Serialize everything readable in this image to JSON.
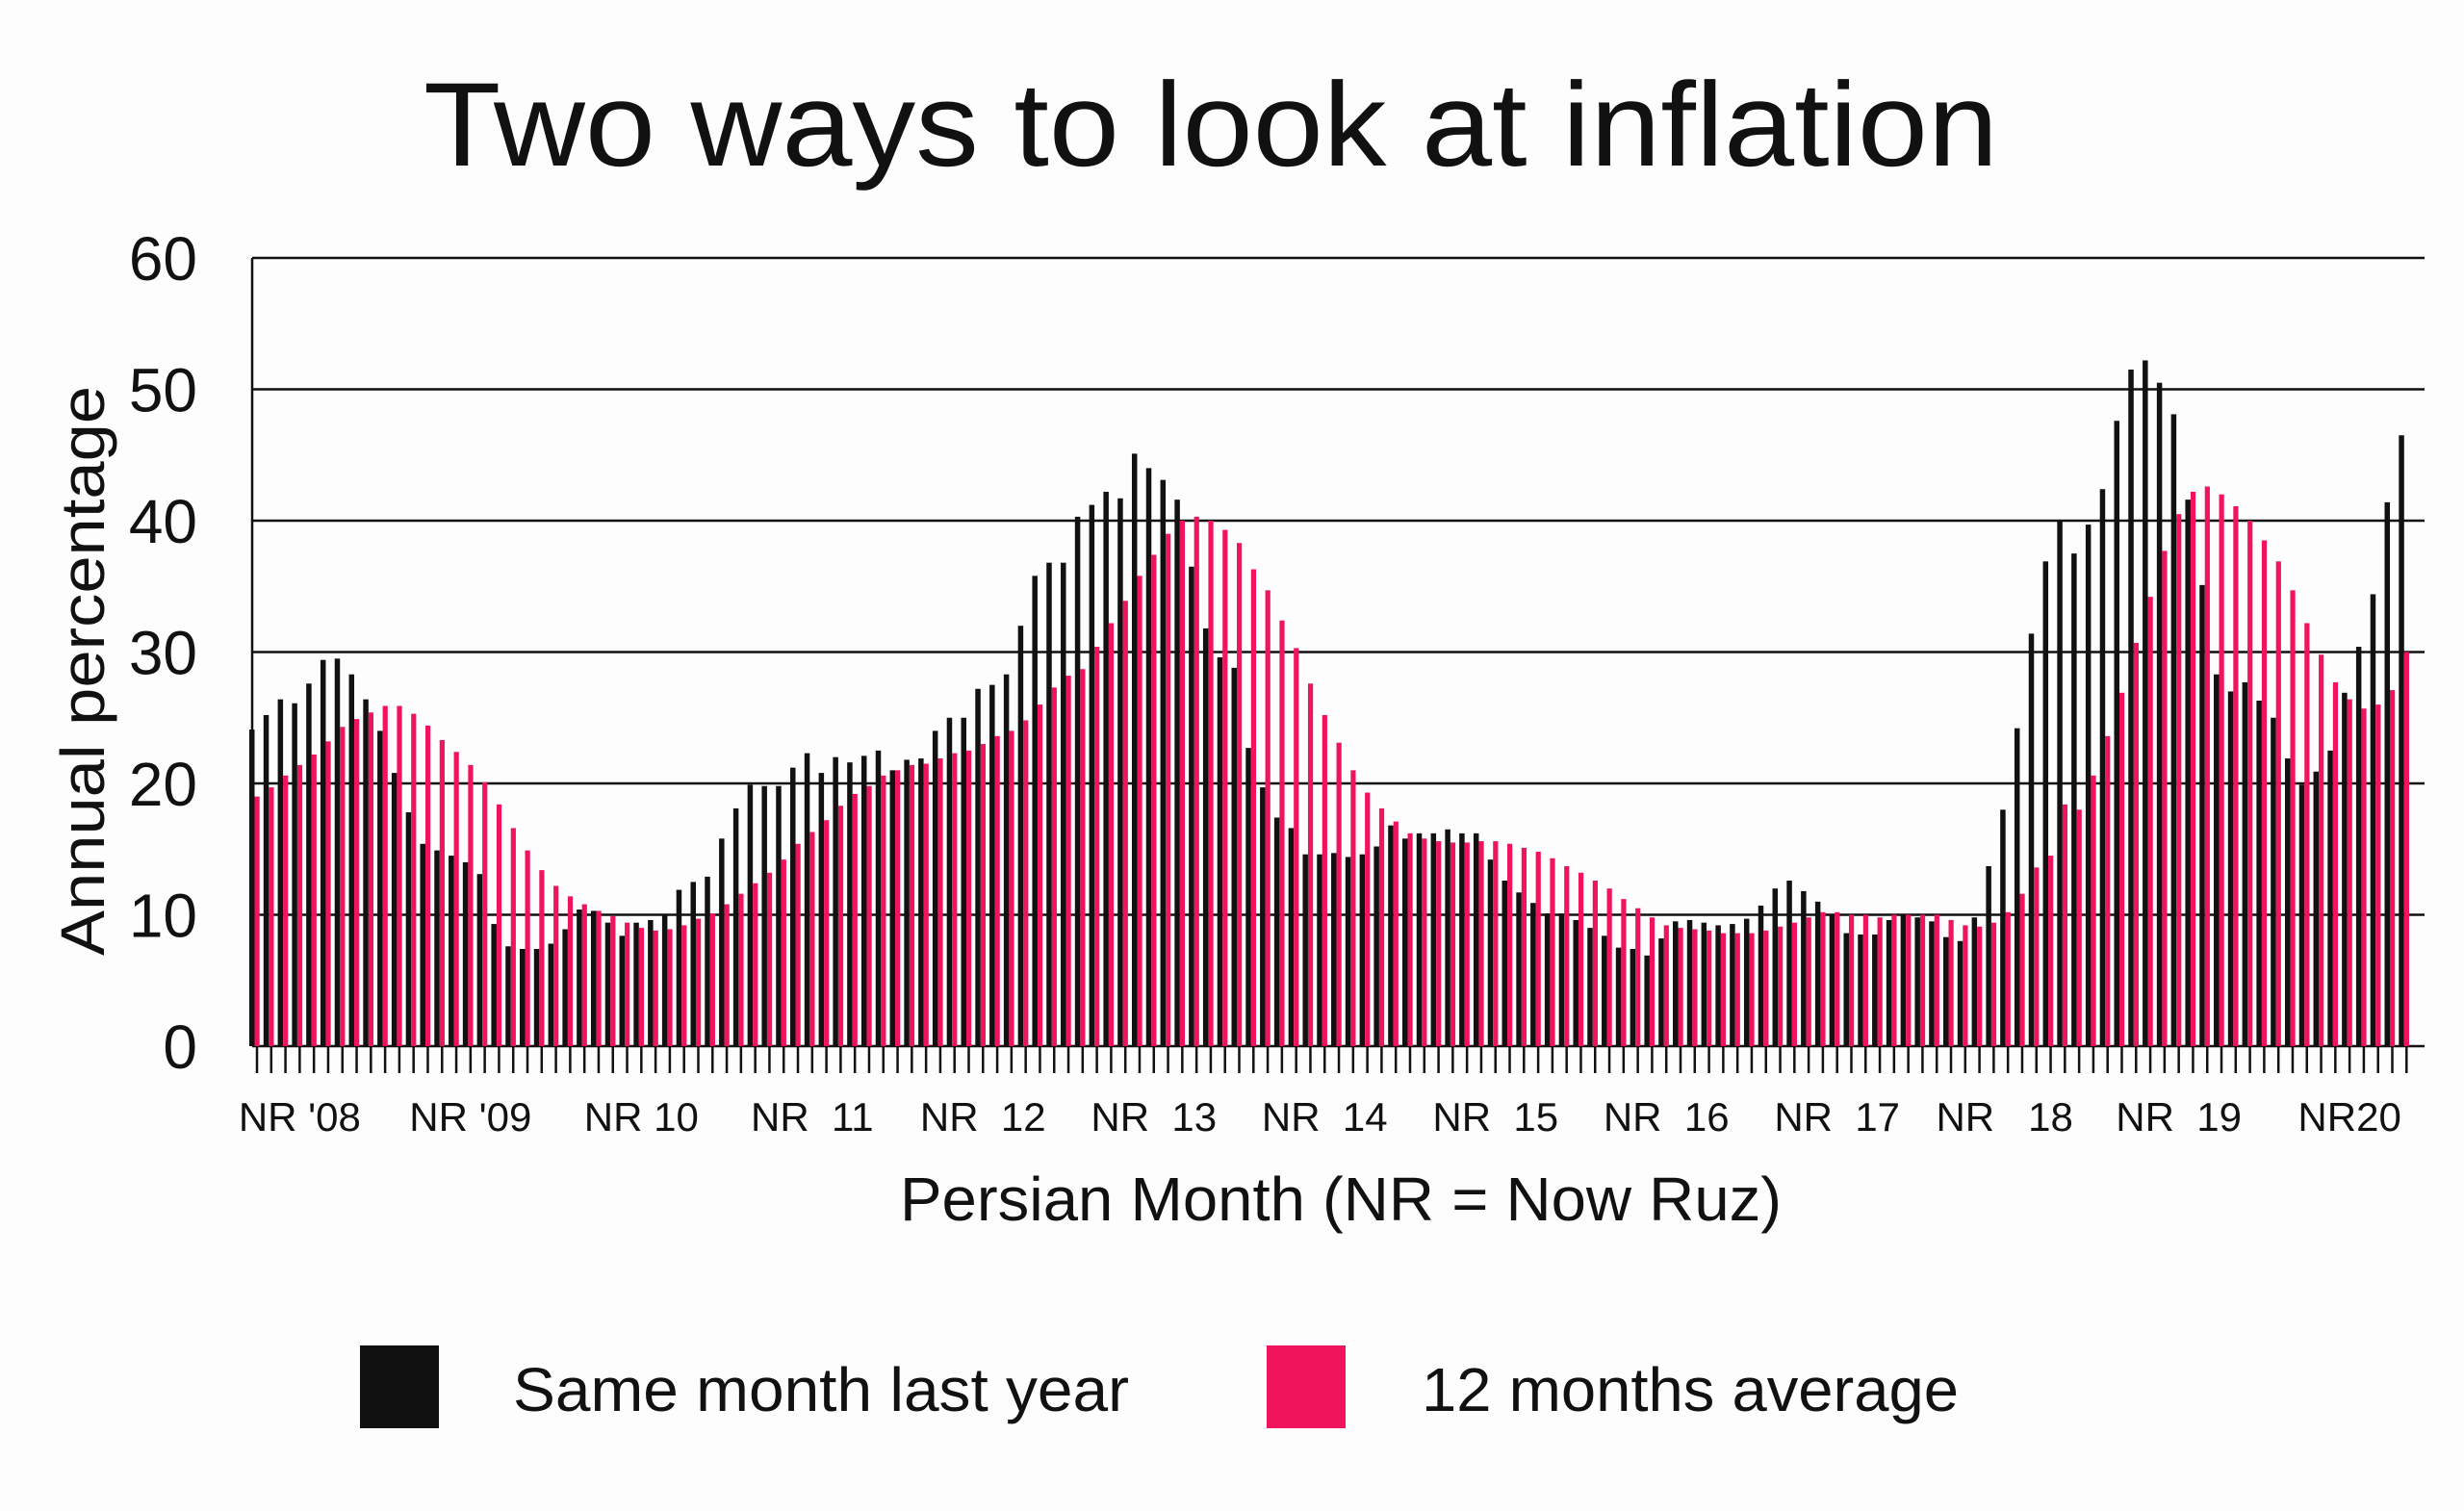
{
  "chart_data": {
    "type": "bar",
    "title": "Two ways to look at inflation",
    "xlabel": "Persian Month (NR = Now Ruz)",
    "ylabel": "Annual percentage",
    "ylim": [
      0,
      60
    ],
    "yticks": [
      0,
      10,
      20,
      30,
      40,
      50,
      60
    ],
    "grid": true,
    "legend_position": "bottom",
    "month_count": 152,
    "x_tick_labels": [
      {
        "month": 4,
        "label": "NR '08"
      },
      {
        "month": 16,
        "label": "NR '09"
      },
      {
        "month": 28,
        "label": "NR 10"
      },
      {
        "month": 40,
        "label": "NR  11"
      },
      {
        "month": 52,
        "label": "NR  12"
      },
      {
        "month": 64,
        "label": "NR  13"
      },
      {
        "month": 76,
        "label": "NR  14"
      },
      {
        "month": 88,
        "label": "NR  15"
      },
      {
        "month": 100,
        "label": "NR  16"
      },
      {
        "month": 112,
        "label": "NR  17"
      },
      {
        "month": 121,
        "label": "NR"
      },
      {
        "month": 127,
        "label": "18"
      },
      {
        "month": 136,
        "label": "NR  19"
      },
      {
        "month": 148,
        "label": "NR20"
      }
    ],
    "series": [
      {
        "name": "Same month last year",
        "color": "#111111",
        "values": [
          24.1,
          25.2,
          26.4,
          26.1,
          27.6,
          29.4,
          29.5,
          28.3,
          26.4,
          24.0,
          20.8,
          17.8,
          15.4,
          14.9,
          14.5,
          14.0,
          13.1,
          9.3,
          7.6,
          7.4,
          7.4,
          7.8,
          8.9,
          10.4,
          10.3,
          9.4,
          8.4,
          9.4,
          9.6,
          10.0,
          11.9,
          12.5,
          12.9,
          15.8,
          18.1,
          19.9,
          19.8,
          19.8,
          21.2,
          22.3,
          20.8,
          22.0,
          21.6,
          22.1,
          22.5,
          21.0,
          21.8,
          21.9,
          24.0,
          25.0,
          25.0,
          27.2,
          27.5,
          28.3,
          32.0,
          35.8,
          36.8,
          36.8,
          40.3,
          41.2,
          42.2,
          41.7,
          45.1,
          44.0,
          43.1,
          41.6,
          36.5,
          31.8,
          29.6,
          28.8,
          22.7,
          19.7,
          17.4,
          16.6,
          14.6,
          14.6,
          14.7,
          14.4,
          14.6,
          15.2,
          16.8,
          15.8,
          16.2,
          16.2,
          16.5,
          16.2,
          16.2,
          14.2,
          12.6,
          11.7,
          10.9,
          10.1,
          10.1,
          9.6,
          9.0,
          8.4,
          7.5,
          7.4,
          6.9,
          8.2,
          9.5,
          9.6,
          9.4,
          9.2,
          9.3,
          9.7,
          10.7,
          12.0,
          12.6,
          11.8,
          11.0,
          10.0,
          8.6,
          8.5,
          8.5,
          9.6,
          10.0,
          9.8,
          9.5,
          8.3,
          8.0,
          9.8,
          13.7,
          18.0,
          24.2,
          31.4,
          36.9,
          40.0,
          37.5,
          39.7,
          42.4,
          47.6,
          51.5,
          52.2,
          50.5,
          48.1,
          41.6,
          35.1,
          28.3,
          27.0,
          27.7,
          26.3,
          25.0,
          21.9,
          19.9,
          20.9,
          22.5,
          26.9,
          30.4,
          34.4,
          41.4,
          46.5
        ]
      },
      {
        "name": "12 months average",
        "color": "#f0145c",
        "values": [
          19.0,
          19.7,
          20.6,
          21.4,
          22.2,
          23.2,
          24.3,
          24.9,
          25.4,
          25.9,
          25.9,
          25.3,
          24.4,
          23.3,
          22.4,
          21.4,
          20.1,
          18.4,
          16.6,
          14.9,
          13.4,
          12.2,
          11.4,
          10.8,
          10.3,
          9.9,
          9.4,
          9.0,
          8.8,
          8.9,
          9.2,
          9.7,
          10.1,
          10.8,
          11.6,
          12.4,
          13.2,
          14.2,
          15.4,
          16.3,
          17.2,
          18.3,
          19.2,
          19.8,
          20.6,
          21.0,
          21.4,
          21.5,
          21.9,
          22.3,
          22.5,
          23.0,
          23.6,
          24.0,
          24.8,
          26.0,
          27.3,
          28.2,
          28.7,
          30.4,
          32.2,
          33.9,
          35.8,
          37.4,
          39.0,
          40.0,
          40.3,
          40.0,
          39.3,
          38.3,
          36.3,
          34.7,
          32.4,
          30.3,
          27.6,
          25.2,
          23.1,
          21.0,
          19.3,
          18.1,
          17.1,
          16.2,
          15.8,
          15.6,
          15.5,
          15.5,
          15.6,
          15.6,
          15.4,
          15.1,
          14.8,
          14.3,
          13.7,
          13.2,
          12.6,
          12.0,
          11.2,
          10.5,
          9.8,
          9.2,
          9.0,
          8.9,
          8.8,
          8.6,
          8.6,
          8.6,
          8.8,
          9.1,
          9.4,
          9.8,
          10.2,
          10.2,
          10.0,
          10.0,
          9.8,
          10.0,
          10.0,
          10.0,
          10.0,
          9.6,
          9.2,
          9.1,
          9.4,
          10.2,
          11.6,
          13.6,
          14.5,
          18.4,
          18.0,
          20.6,
          23.6,
          26.9,
          30.7,
          34.2,
          37.7,
          40.5,
          42.2,
          42.6,
          42.0,
          41.1,
          40.0,
          38.5,
          36.9,
          34.7,
          32.2,
          29.8,
          27.7,
          26.4,
          25.7,
          26.0,
          27.1,
          30.0
        ]
      }
    ]
  }
}
